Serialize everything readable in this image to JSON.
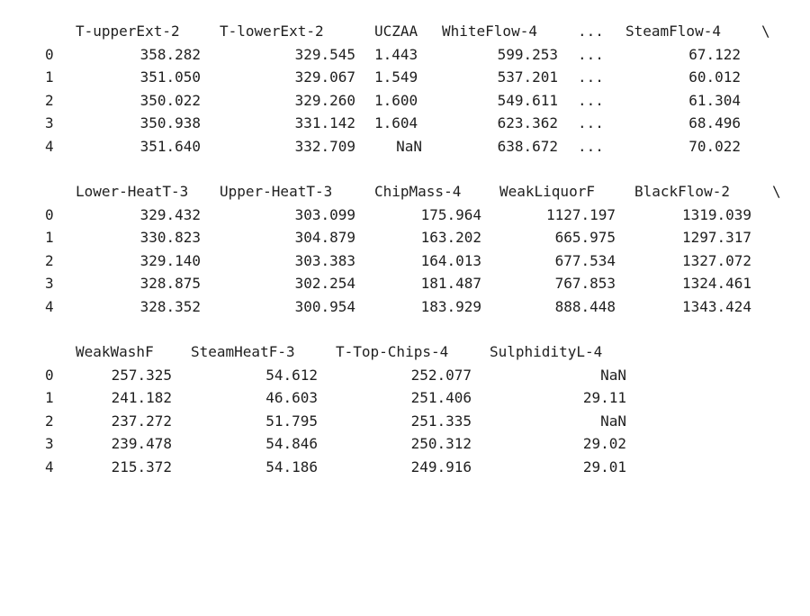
{
  "blocks": [
    {
      "columns": [
        "T-upperExt-2",
        "T-lowerExt-2",
        "UCZAA",
        "WhiteFlow-4",
        "...",
        "SteamFlow-4"
      ],
      "continuation": "\\",
      "index": [
        "0",
        "1",
        "2",
        "3",
        "4"
      ],
      "rows": [
        [
          "358.282",
          "329.545",
          "1.443",
          "599.253",
          "...",
          "67.122"
        ],
        [
          "351.050",
          "329.067",
          "1.549",
          "537.201",
          "...",
          "60.012"
        ],
        [
          "350.022",
          "329.260",
          "1.600",
          "549.611",
          "...",
          "61.304"
        ],
        [
          "350.938",
          "331.142",
          "1.604",
          "623.362",
          "...",
          "68.496"
        ],
        [
          "351.640",
          "332.709",
          "NaN",
          "638.672",
          "...",
          "70.022"
        ]
      ]
    },
    {
      "columns": [
        "Lower-HeatT-3",
        "Upper-HeatT-3",
        "ChipMass-4",
        "WeakLiquorF",
        "BlackFlow-2"
      ],
      "continuation": "\\",
      "index": [
        "0",
        "1",
        "2",
        "3",
        "4"
      ],
      "rows": [
        [
          "329.432",
          "303.099",
          "175.964",
          "1127.197",
          "1319.039"
        ],
        [
          "330.823",
          "304.879",
          "163.202",
          "665.975",
          "1297.317"
        ],
        [
          "329.140",
          "303.383",
          "164.013",
          "677.534",
          "1327.072"
        ],
        [
          "328.875",
          "302.254",
          "181.487",
          "767.853",
          "1324.461"
        ],
        [
          "328.352",
          "300.954",
          "183.929",
          "888.448",
          "1343.424"
        ]
      ]
    },
    {
      "columns": [
        "WeakWashF",
        "SteamHeatF-3",
        "T-Top-Chips-4",
        "SulphidityL-4"
      ],
      "continuation": "",
      "index": [
        "0",
        "1",
        "2",
        "3",
        "4"
      ],
      "rows": [
        [
          "257.325",
          "54.612",
          "252.077",
          "NaN"
        ],
        [
          "241.182",
          "46.603",
          "251.406",
          "29.11"
        ],
        [
          "237.272",
          "51.795",
          "251.335",
          "NaN"
        ],
        [
          "239.478",
          "54.846",
          "250.312",
          "29.02"
        ],
        [
          "215.372",
          "54.186",
          "249.916",
          "29.01"
        ]
      ]
    }
  ]
}
